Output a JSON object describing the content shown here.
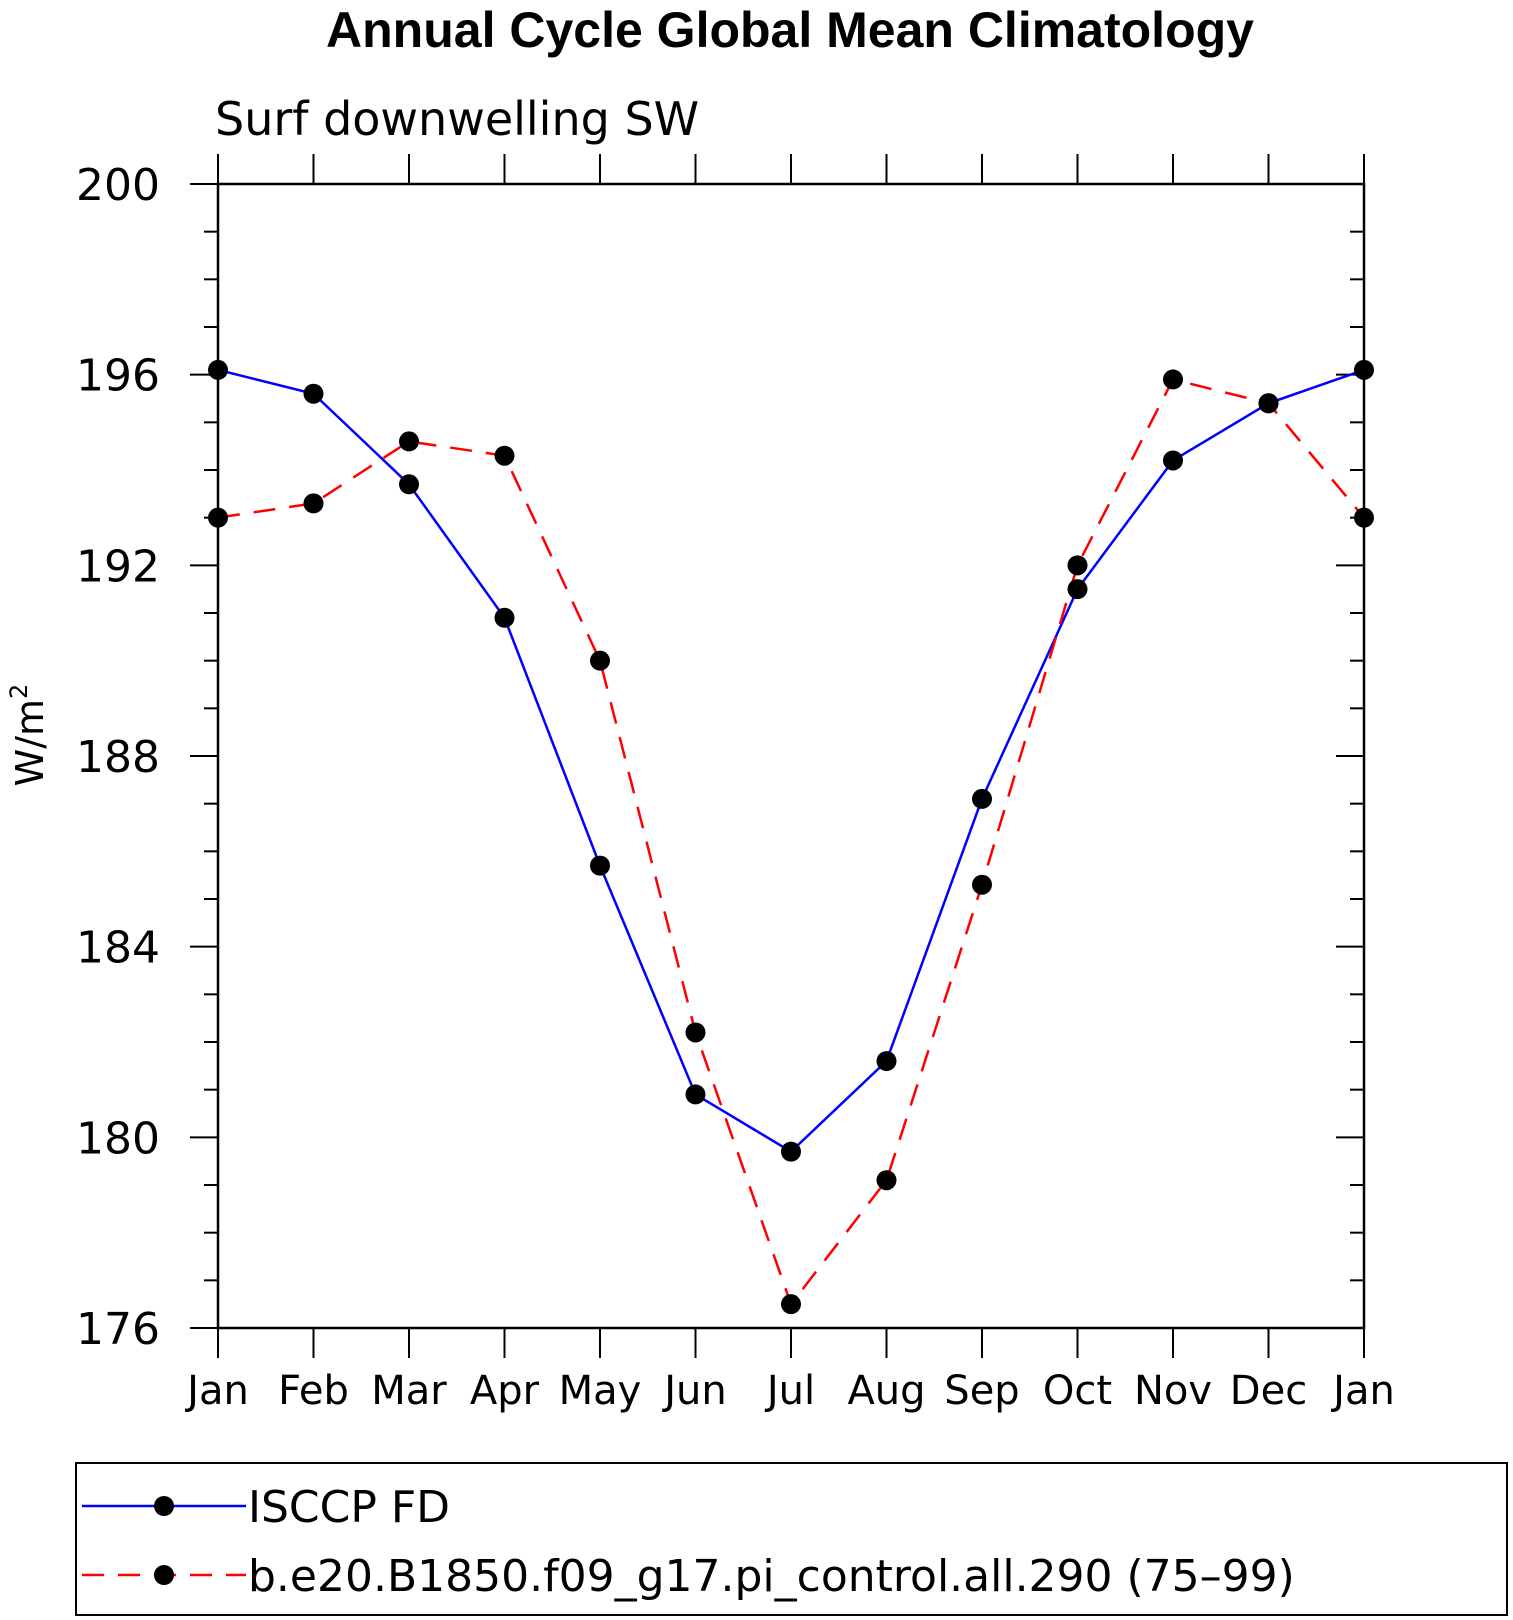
{
  "chart_data": {
    "type": "line",
    "title": "Annual Cycle Global Mean Climatology",
    "subtitle": "Surf downwelling SW",
    "ylabel": "W/m",
    "ylabel_superscript": "2",
    "ylim": [
      176,
      200
    ],
    "yticks": [
      176,
      180,
      184,
      188,
      192,
      196,
      200
    ],
    "categories": [
      "Jan",
      "Feb",
      "Mar",
      "Apr",
      "May",
      "Jun",
      "Jul",
      "Aug",
      "Sep",
      "Oct",
      "Nov",
      "Dec",
      "Jan"
    ],
    "series": [
      {
        "name": "ISCCP FD",
        "color": "#0000ff",
        "linestyle": "solid",
        "values": [
          196.1,
          195.6,
          193.7,
          190.9,
          185.7,
          180.9,
          179.7,
          181.6,
          187.1,
          191.5,
          194.2,
          195.4,
          196.1
        ]
      },
      {
        "name": "b.e20.B1850.f09_g17.pi_control.all.290 (75–99)",
        "color": "#ff0000",
        "linestyle": "dashed",
        "values": [
          193.0,
          193.3,
          194.6,
          194.3,
          190.0,
          182.2,
          176.5,
          179.1,
          185.3,
          192.0,
          195.9,
          195.4,
          193.0
        ]
      }
    ],
    "marker_color": "#000000",
    "legend_placement": "bottom"
  }
}
